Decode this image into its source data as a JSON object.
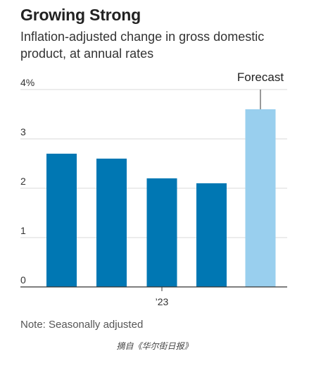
{
  "header": {
    "title": "Growing Strong",
    "subtitle": "Inflation-adjusted change in gross domestic product, at annual rates"
  },
  "note": "Note: Seasonally adjusted",
  "source": "摘自《华尔街日报》",
  "colors": {
    "actual": "#0077b3",
    "forecast": "#99cfee",
    "grid": "#d9d9d9",
    "axis": "#333333"
  },
  "chart_data": {
    "type": "bar",
    "values": [
      2.7,
      2.6,
      2.2,
      2.1,
      3.6
    ],
    "forecast_index": 4,
    "annotation": "Forecast",
    "ylim": [
      0,
      4
    ],
    "y_ticks": [
      "0",
      "1",
      "2",
      "3",
      "4%"
    ],
    "x_tick_label": "’23",
    "grid": true
  }
}
